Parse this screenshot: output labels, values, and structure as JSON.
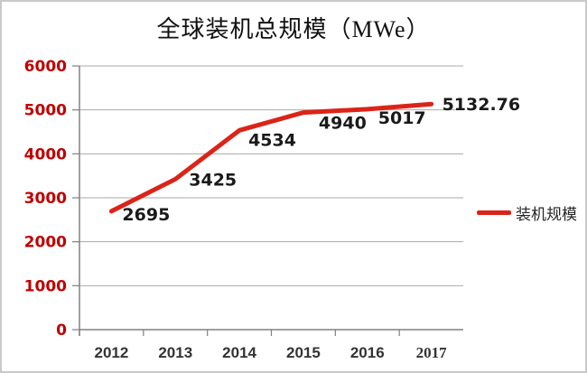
{
  "chart_data": {
    "type": "line",
    "title": "全球装机总规模（MWe）",
    "categories": [
      "2012",
      "2013",
      "2014",
      "2015",
      "2016",
      "2017"
    ],
    "series": [
      {
        "name": "装机规模",
        "values": [
          2695,
          3425,
          4534,
          4940,
          5017,
          5132.76
        ],
        "data_labels": [
          "2695",
          "3425",
          "4534",
          "4940",
          "5017",
          "5132.76"
        ]
      }
    ],
    "xlabel": "",
    "ylabel": "",
    "ylim": [
      0,
      6000
    ],
    "ytick_step": 1000,
    "ytick_labels": [
      "0",
      "1000",
      "2000",
      "3000",
      "4000",
      "5000",
      "6000"
    ],
    "grid": "horizontal",
    "legend_position": "right-middle"
  },
  "colors": {
    "series_red": "#db2419",
    "ytick_label_red": "#c00000",
    "gridline_gray": "#a9a9a9",
    "axis_gray": "#808080",
    "data_label_black": "#1a1a1a",
    "xtick_label_dark": "#333333",
    "legend_text_dark": "#262626",
    "frame_border_gray": "#c9c9c9",
    "background": "#ffffff"
  }
}
